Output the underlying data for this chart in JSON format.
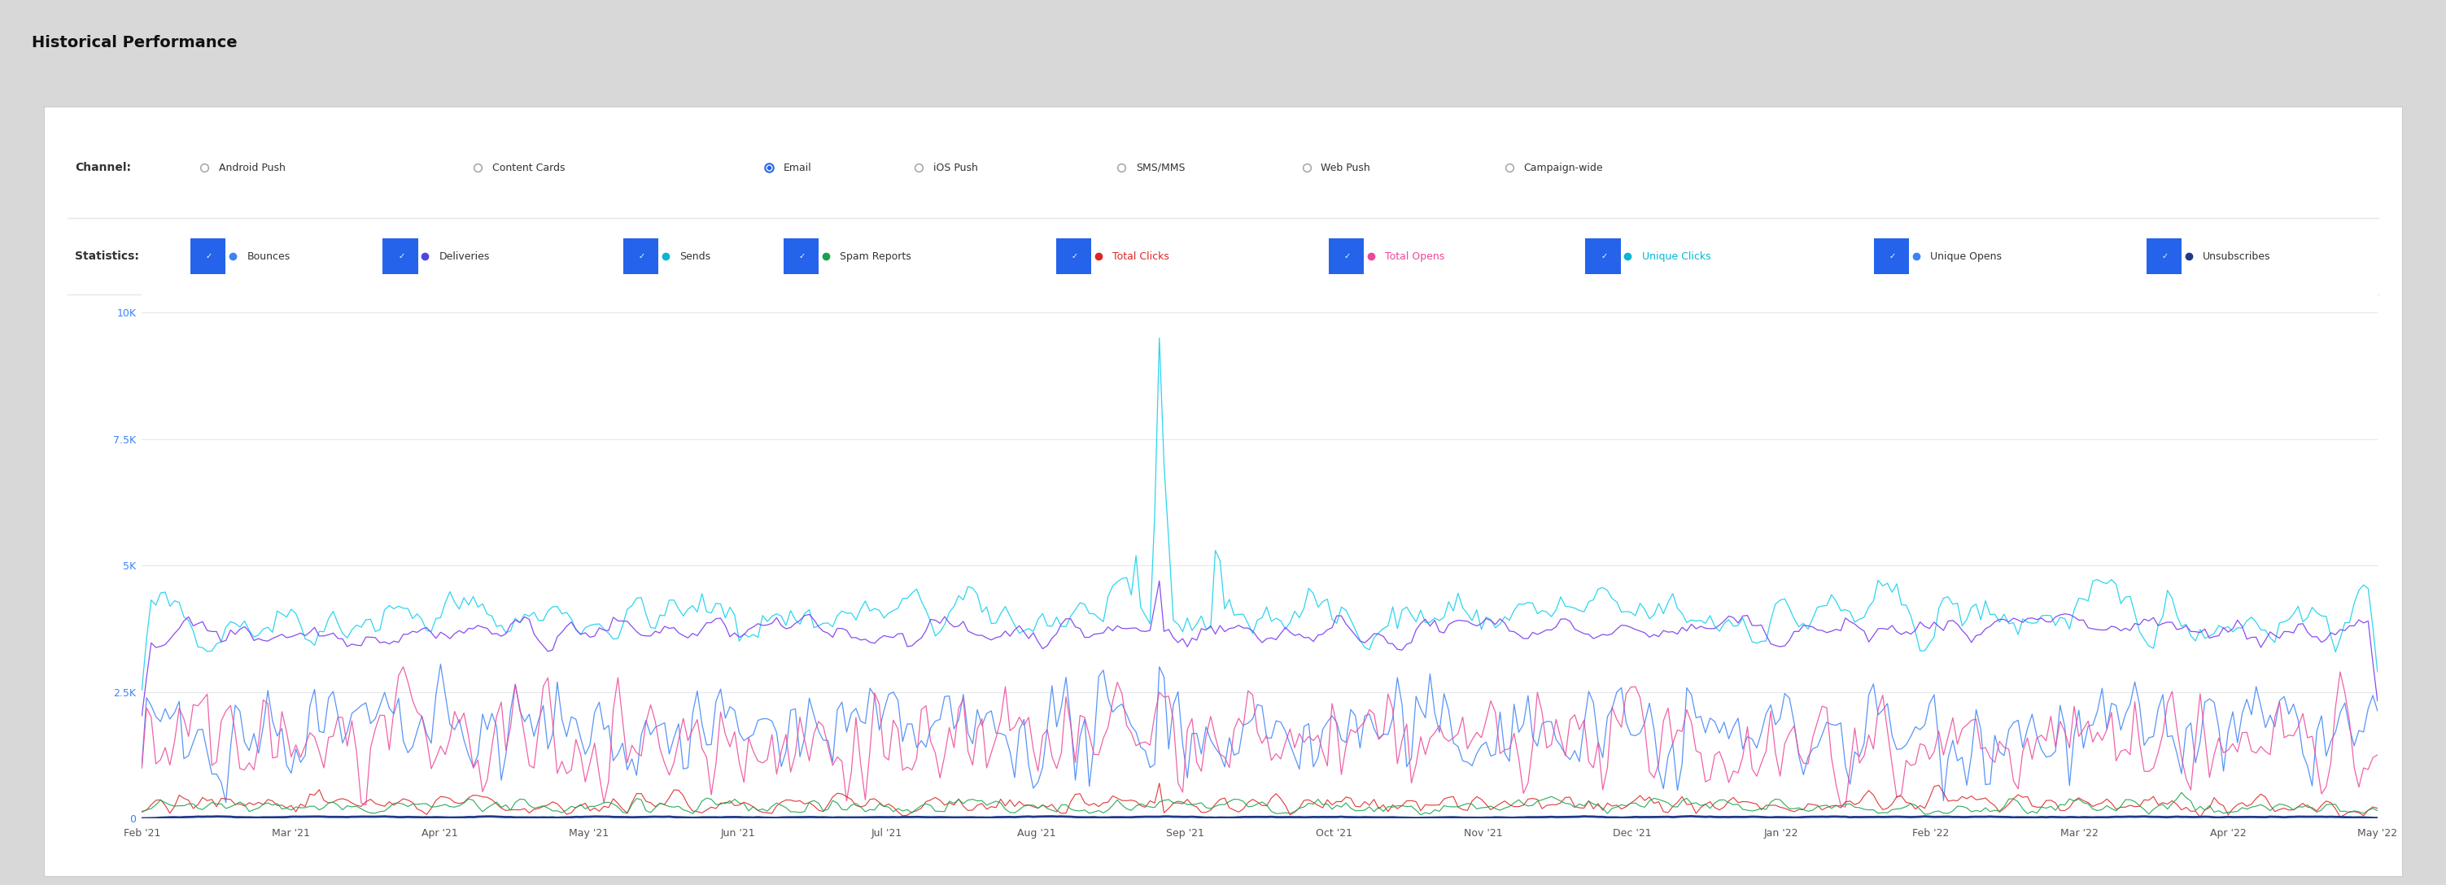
{
  "title": "Historical Performance",
  "background_color": "#d8d8d8",
  "panel_background": "#ffffff",
  "channel_label": "Channel:",
  "channel_options": [
    "Android Push",
    "Content Cards",
    "Email",
    "iOS Push",
    "SMS/MMS",
    "Web Push",
    "Campaign-wide"
  ],
  "channel_selected": "Email",
  "statistics_label": "Statistics:",
  "statistics": [
    {
      "name": "Bounces",
      "color": "#3b82f6"
    },
    {
      "name": "Deliveries",
      "color": "#4f46e5"
    },
    {
      "name": "Sends",
      "color": "#06b6d4"
    },
    {
      "name": "Spam Reports",
      "color": "#16a34a"
    },
    {
      "name": "Total Clicks",
      "color": "#dc2626"
    },
    {
      "name": "Total Opens",
      "color": "#ec4899"
    },
    {
      "name": "Unique Clicks",
      "color": "#06b6d4"
    },
    {
      "name": "Unique Opens",
      "color": "#3b82f6"
    },
    {
      "name": "Unsubscribes",
      "color": "#1e3a8a"
    }
  ],
  "stat_label_colors": {
    "Bounces": "#333333",
    "Deliveries": "#333333",
    "Sends": "#333333",
    "Spam Reports": "#333333",
    "Total Clicks": "#dc2626",
    "Total Opens": "#ec4899",
    "Unique Clicks": "#06b6d4",
    "Unique Opens": "#333333",
    "Unsubscribes": "#333333"
  },
  "x_tick_labels": [
    "Feb '21",
    "Mar '21",
    "Apr '21",
    "May '21",
    "Jun '21",
    "Jul '21",
    "Aug '21",
    "Sep '21",
    "Oct '21",
    "Nov '21",
    "Dec '21",
    "Jan '22",
    "Feb '22",
    "Mar '22",
    "Apr '22",
    "May '22"
  ],
  "y_tick_labels": [
    "0",
    "2.5K",
    "5K",
    "7.5K",
    "10K"
  ],
  "y_ticks": [
    0,
    2500,
    5000,
    7500,
    10000
  ],
  "y_max": 10500,
  "line_colors": {
    "cyan": "#22d3ee",
    "purple": "#7c3aed",
    "blue": "#3b82f6",
    "pink": "#ec4899",
    "red": "#dc2626",
    "green": "#16a34a",
    "navy": "#1e3a8a"
  },
  "separator_color": "#e5e7eb",
  "hamburger_color": "#555555",
  "ytick_color": "#3b82f6",
  "xtick_color": "#555555"
}
